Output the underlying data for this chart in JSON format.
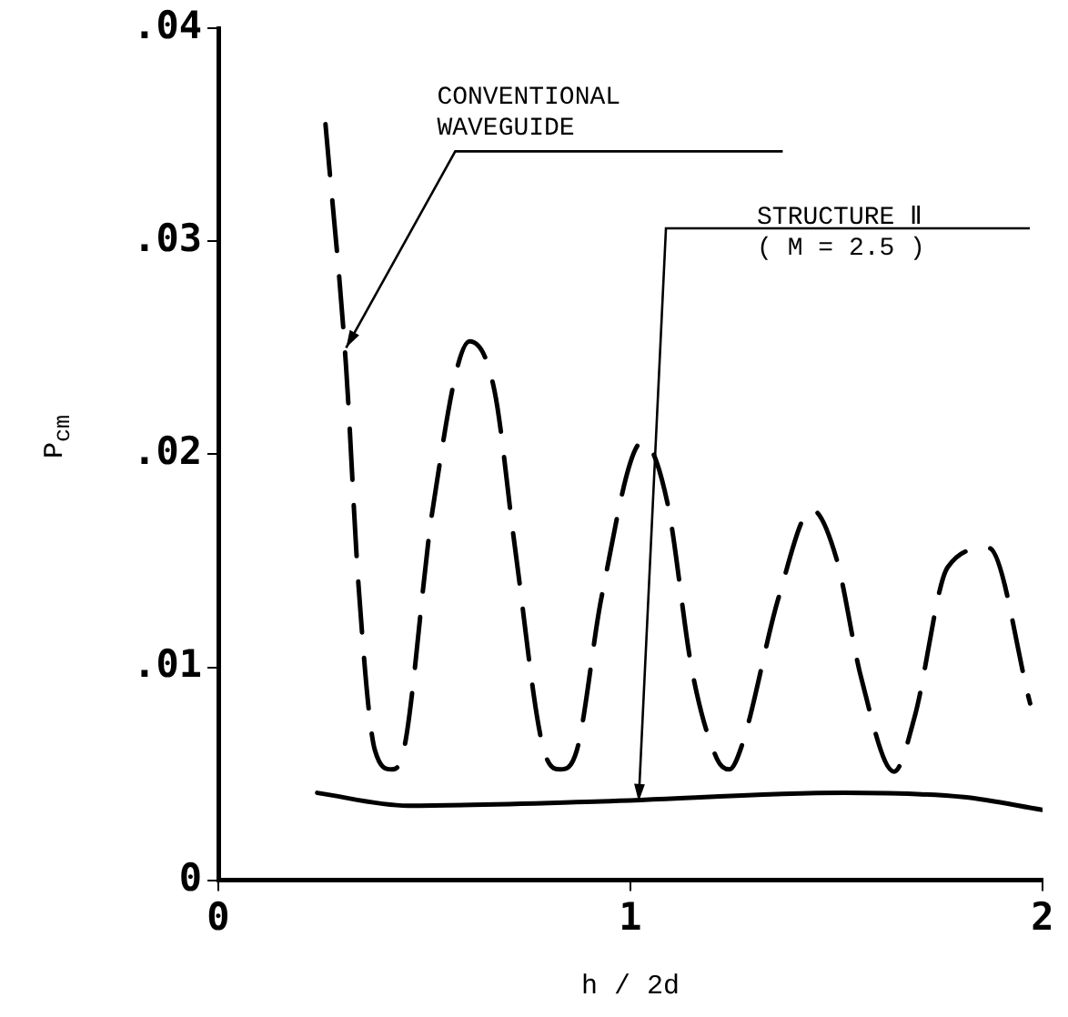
{
  "chart_data": {
    "type": "line",
    "xlabel": "h / 2d",
    "ylabel": "P$_{cm}$",
    "xlim": [
      0,
      2
    ],
    "xticks": [
      0,
      1,
      2
    ],
    "ylim": [
      0,
      0.04
    ],
    "yticks": [
      {
        "value": 0,
        "label": "0"
      },
      {
        "value": 0.01,
        "label": ".01"
      },
      {
        "value": 0.02,
        "label": ".02"
      },
      {
        "value": 0.03,
        "label": ".03"
      },
      {
        "value": 0.04,
        "label": ".04"
      }
    ],
    "legend": false,
    "series": [
      {
        "color": "#000000",
        "line_style": "dashed",
        "x": [
          0.26,
          0.31,
          0.34,
          0.38,
          0.42,
          0.45,
          0.52,
          0.61,
          0.67,
          0.72,
          0.79,
          0.83,
          0.87,
          0.93,
          1.03,
          1.09,
          1.15,
          1.21,
          1.24,
          1.27,
          1.36,
          1.44,
          1.5,
          1.56,
          1.64,
          1.69,
          1.77,
          1.87,
          1.97
        ],
        "values": [
          0.0355,
          0.0241,
          0.0139,
          0.0061,
          0.0052,
          0.0061,
          0.0174,
          0.0253,
          0.023,
          0.0156,
          0.0061,
          0.0052,
          0.0061,
          0.0133,
          0.0206,
          0.0177,
          0.0098,
          0.0057,
          0.0052,
          0.0063,
          0.0133,
          0.0174,
          0.0151,
          0.0095,
          0.0051,
          0.0077,
          0.0147,
          0.0156,
          0.0083
        ]
      },
      {
        "color": "#000000",
        "line_style": "solid",
        "x": [
          0.24,
          0.46,
          0.93,
          1.52,
          1.81,
          2.0
        ],
        "values": [
          0.0041,
          0.0035,
          0.0037,
          0.0041,
          0.0039,
          0.0033
        ]
      }
    ],
    "annotations": [
      {
        "text": "CONVENTIONAL\nWAVEGUIDE",
        "x": 0.31,
        "y": 0.025
      },
      {
        "text": "STRUCTURE Ⅱ\n( M = 2.5 )",
        "x": 1.02,
        "y": 0.0037
      }
    ]
  }
}
